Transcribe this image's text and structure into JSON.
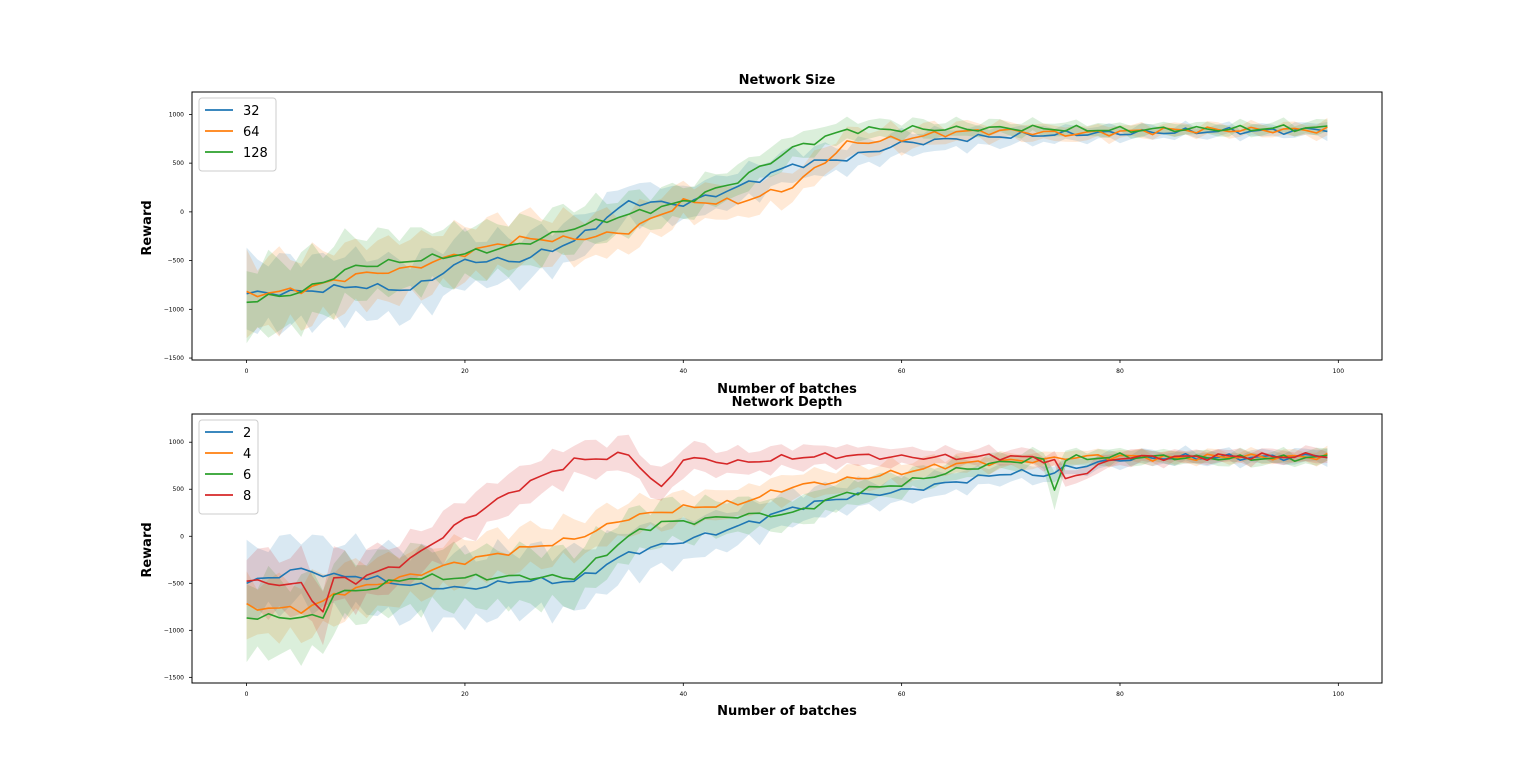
{
  "colors": {
    "c0": "#1f77b4",
    "c1": "#ff7f0e",
    "c2": "#2ca02c",
    "c3": "#d62728"
  },
  "chart_data": [
    {
      "type": "line",
      "title": "Network Size",
      "xlabel": "Number of batches",
      "ylabel": "Reward",
      "xlim": [
        -5,
        104
      ],
      "ylim": [
        -1520,
        1230
      ],
      "xticks": [
        "0",
        "20",
        "40",
        "60",
        "80",
        "100"
      ],
      "yticks": [
        "1000",
        "500",
        "0",
        "−500",
        "−1000",
        "−1500"
      ],
      "legend_position": "upper-left",
      "shaded_band": "mean ± std",
      "x_keys": [
        0,
        5,
        10,
        15,
        20,
        25,
        30,
        35,
        40,
        45,
        50,
        55,
        60,
        65,
        70,
        75,
        80,
        85,
        90,
        95,
        99
      ],
      "series": [
        {
          "name": "32",
          "color": "#1f77b4",
          "values": [
            -840,
            -820,
            -760,
            -800,
            -500,
            -500,
            -300,
            100,
            80,
            250,
            480,
            550,
            700,
            750,
            780,
            800,
            810,
            820,
            830,
            830,
            850
          ],
          "std": [
            430,
            400,
            380,
            350,
            300,
            280,
            250,
            230,
            200,
            200,
            180,
            160,
            140,
            120,
            110,
            90,
            80,
            70,
            70,
            70,
            90
          ]
        },
        {
          "name": "64",
          "color": "#ff7f0e",
          "values": [
            -850,
            -800,
            -650,
            -580,
            -420,
            -280,
            -280,
            -200,
            100,
            100,
            260,
            700,
            750,
            820,
            830,
            800,
            820,
            840,
            840,
            840,
            840
          ],
          "std": [
            440,
            420,
            380,
            360,
            330,
            300,
            270,
            240,
            220,
            200,
            180,
            160,
            140,
            110,
            100,
            90,
            80,
            70,
            70,
            70,
            90
          ]
        },
        {
          "name": "128",
          "color": "#2ca02c",
          "values": [
            -920,
            -820,
            -560,
            -500,
            -430,
            -340,
            -160,
            -30,
            100,
            320,
            650,
            840,
            850,
            850,
            860,
            850,
            840,
            850,
            850,
            860,
            860
          ],
          "std": [
            430,
            420,
            380,
            350,
            330,
            300,
            260,
            230,
            200,
            180,
            160,
            120,
            100,
            90,
            80,
            80,
            70,
            70,
            70,
            70,
            80
          ]
        }
      ]
    },
    {
      "type": "line",
      "title": "Network Depth",
      "xlabel": "Number of batches",
      "ylabel": "Reward",
      "xlim": [
        -5,
        104
      ],
      "ylim": [
        -1560,
        1300
      ],
      "xticks": [
        "0",
        "20",
        "40",
        "60",
        "80",
        "100"
      ],
      "yticks": [
        "1000",
        "500",
        "0",
        "−500",
        "−1000",
        "−1500"
      ],
      "legend_position": "upper-left",
      "shaded_band": "mean ± std",
      "x_keys": [
        0,
        5,
        7,
        8,
        10,
        15,
        20,
        25,
        30,
        35,
        38,
        40,
        45,
        50,
        55,
        60,
        65,
        70,
        73,
        74,
        75,
        80,
        85,
        90,
        95,
        99
      ],
      "series": [
        {
          "name": "2",
          "color": "#1f77b4",
          "values": [
            -500,
            -350,
            -400,
            -430,
            -420,
            -520,
            -560,
            -470,
            -480,
            -180,
            -100,
            -50,
            100,
            300,
            420,
            480,
            580,
            680,
            650,
            680,
            720,
            820,
            840,
            840,
            840,
            860
          ],
          "std": [
            420,
            420,
            420,
            420,
            420,
            430,
            420,
            400,
            380,
            300,
            280,
            260,
            230,
            200,
            170,
            150,
            130,
            110,
            100,
            100,
            100,
            90,
            80,
            80,
            80,
            90
          ]
        },
        {
          "name": "4",
          "color": "#ff7f0e",
          "values": [
            -750,
            -780,
            -700,
            -620,
            -560,
            -420,
            -260,
            -140,
            -30,
            200,
            260,
            300,
            350,
            530,
            600,
            680,
            770,
            800,
            810,
            820,
            840,
            850,
            830,
            850,
            840,
            850
          ],
          "std": [
            350,
            350,
            350,
            340,
            330,
            300,
            280,
            260,
            240,
            210,
            200,
            190,
            180,
            160,
            150,
            130,
            110,
            90,
            90,
            90,
            80,
            80,
            70,
            70,
            70,
            80
          ]
        },
        {
          "name": "6",
          "color": "#2ca02c",
          "values": [
            -860,
            -860,
            -860,
            -600,
            -590,
            -440,
            -440,
            -430,
            -440,
            0,
            150,
            150,
            220,
            240,
            460,
            560,
            700,
            800,
            820,
            500,
            820,
            850,
            840,
            830,
            830,
            840
          ],
          "std": [
            480,
            470,
            470,
            400,
            380,
            380,
            360,
            350,
            330,
            280,
            260,
            240,
            210,
            180,
            160,
            140,
            120,
            100,
            100,
            250,
            100,
            90,
            80,
            80,
            80,
            90
          ]
        },
        {
          "name": "8",
          "color": "#d62728",
          "values": [
            -480,
            -520,
            -800,
            -450,
            -470,
            -250,
            180,
            520,
            800,
            870,
            500,
            830,
            780,
            840,
            860,
            840,
            840,
            850,
            820,
            800,
            600,
            840,
            840,
            850,
            850,
            860
          ],
          "std": [
            370,
            360,
            330,
            320,
            300,
            280,
            260,
            240,
            210,
            200,
            190,
            180,
            150,
            140,
            120,
            110,
            100,
            90,
            90,
            90,
            90,
            90,
            80,
            80,
            80,
            90
          ]
        }
      ]
    }
  ]
}
